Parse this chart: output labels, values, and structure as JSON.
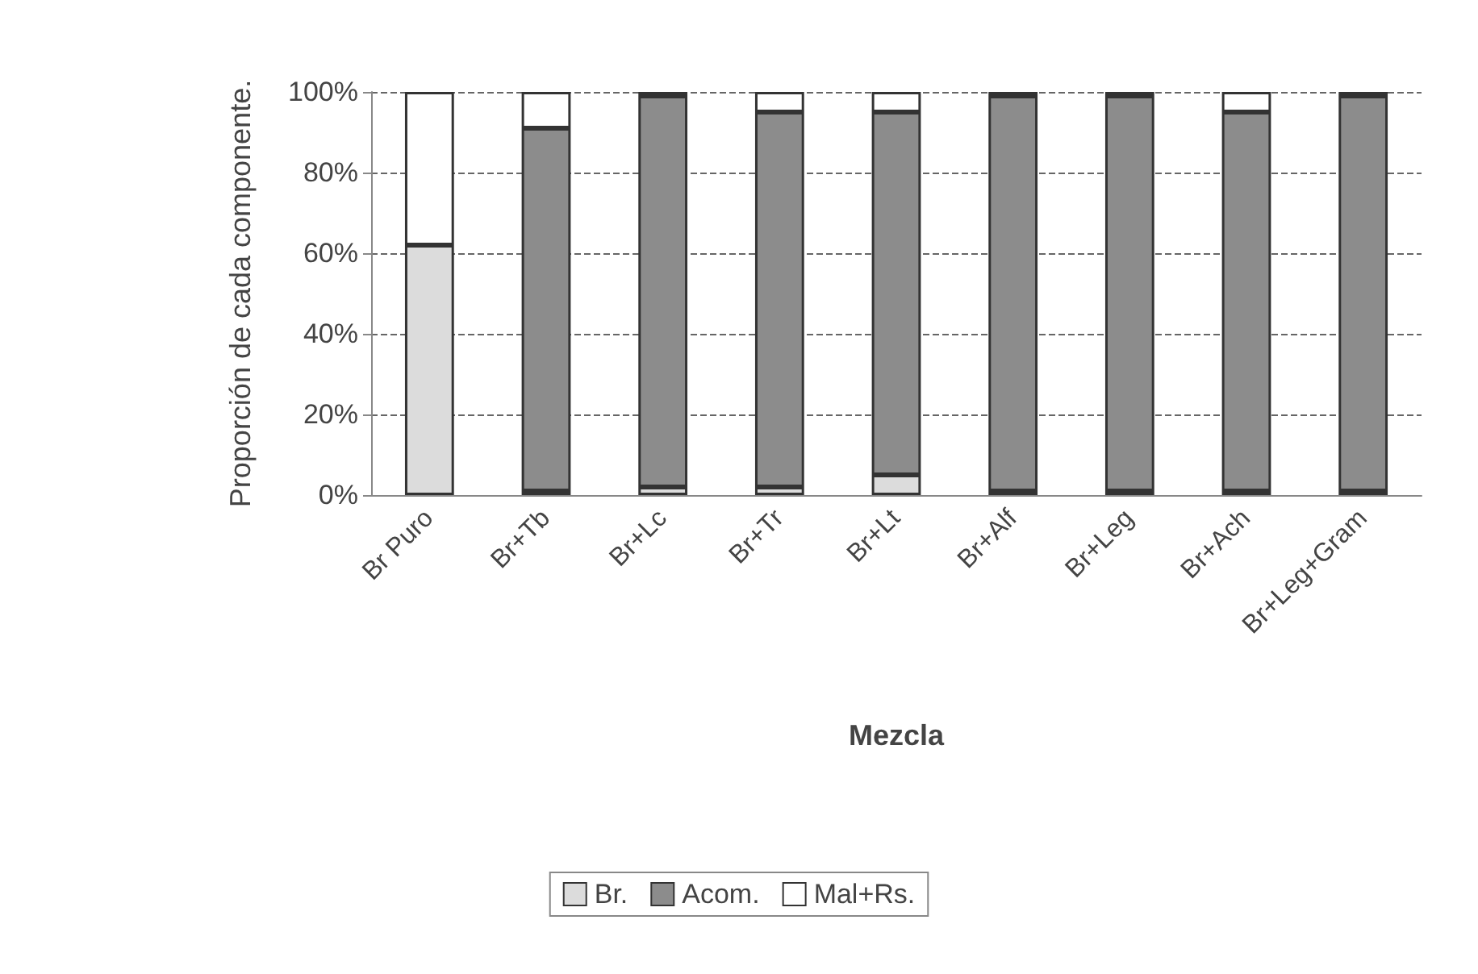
{
  "chart_data": {
    "type": "bar",
    "stacked": true,
    "xlabel": "Mezcla",
    "ylabel": "Proporción de cada componente.",
    "categories": [
      "Br Puro",
      "Br+Tb",
      "Br+Lc",
      "Br+Tr",
      "Br+Lt",
      "Br+Alf",
      "Br+Leg",
      "Br+Ach",
      "Br+Leg+Gram"
    ],
    "series": [
      {
        "name": "Br.",
        "color": "#dcdcdc",
        "values": [
          62,
          1,
          2,
          2,
          5,
          1,
          1,
          1,
          1
        ]
      },
      {
        "name": "Acom.",
        "color": "#8c8c8c",
        "values": [
          0,
          90,
          97,
          93,
          90,
          98,
          98,
          94,
          98
        ]
      },
      {
        "name": "Mal+Rs.",
        "color": "#ffffff",
        "values": [
          38,
          9,
          1,
          5,
          5,
          1,
          1,
          5,
          1
        ]
      }
    ],
    "ylim": [
      0,
      100
    ],
    "yticks": [
      {
        "value": 0,
        "label": "0%"
      },
      {
        "value": 20,
        "label": "20%"
      },
      {
        "value": 40,
        "label": "40%"
      },
      {
        "value": 60,
        "label": "60%"
      },
      {
        "value": 80,
        "label": "80%"
      },
      {
        "value": 100,
        "label": "100%"
      }
    ],
    "grid": "y",
    "legend": "bottom"
  }
}
